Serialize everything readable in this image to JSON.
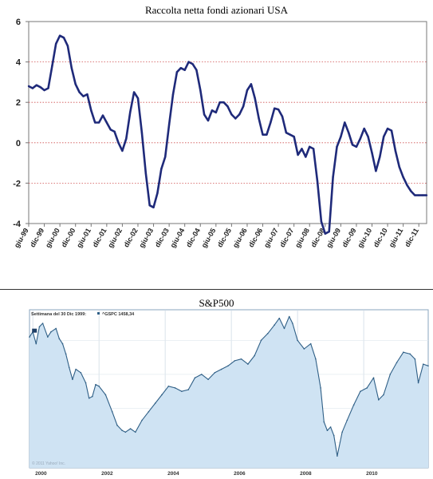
{
  "chart_data": [
    {
      "type": "line",
      "title": "Raccolta netta fondi azionari USA",
      "ylim": [
        -4,
        6
      ],
      "yticks": [
        -4,
        -2,
        0,
        2,
        4,
        6
      ],
      "xticks": [
        "giu-99",
        "dic-99",
        "giu-00",
        "dic-00",
        "giu-01",
        "dic-01",
        "giu-02",
        "dic-02",
        "giu-03",
        "dic-03",
        "giu-04",
        "dic-04",
        "giu-05",
        "dic-05",
        "giu-06",
        "dic-06",
        "giu-07",
        "dic-07",
        "giu-08",
        "dic-08",
        "giu-09",
        "dic-09",
        "giu-10",
        "dic-10",
        "giu-11",
        "dic-11"
      ],
      "grid": "horizontal-dotted-red",
      "line_color": "#1f2a7a",
      "series": [
        {
          "x": [
            0,
            0.5,
            1,
            1.5,
            2,
            2.5,
            3,
            3.5,
            4,
            4.5,
            5,
            5.5,
            6,
            6.5,
            7,
            7.5,
            8,
            8.5,
            9,
            9.5,
            10,
            10.5,
            11,
            11.5,
            12,
            12.5,
            13,
            13.5,
            14,
            14.5,
            15,
            15.5,
            16,
            16.5,
            17,
            17.5,
            18,
            18.5,
            19,
            19.5,
            20,
            20.5,
            21,
            21.5,
            22,
            22.5,
            23,
            23.5,
            24,
            24.5,
            25,
            25.5,
            26,
            26.5,
            27,
            27.5,
            28,
            28.5,
            29,
            29.5,
            30,
            30.5,
            31,
            31.5,
            32,
            32.5,
            33,
            33.5,
            34,
            34.5,
            35,
            35.5,
            36,
            36.5,
            37,
            37.5,
            38,
            38.5,
            39,
            39.5,
            40,
            40.5,
            41,
            41.5,
            42,
            42.5,
            43,
            43.5,
            44,
            44.5,
            45,
            45.5,
            46,
            46.5,
            47,
            47.5,
            48,
            48.5,
            49,
            49.5,
            50,
            50.5,
            51
          ],
          "y": [
            2.8,
            2.7,
            2.85,
            2.75,
            2.6,
            2.7,
            3.8,
            4.9,
            5.3,
            5.2,
            4.8,
            3.7,
            2.9,
            2.5,
            2.3,
            2.4,
            1.6,
            1.0,
            1.0,
            1.35,
            1.0,
            0.65,
            0.55,
            0.0,
            -0.4,
            0.2,
            1.5,
            2.5,
            2.2,
            0.5,
            -1.5,
            -3.1,
            -3.2,
            -2.5,
            -1.3,
            -0.7,
            0.9,
            2.4,
            3.5,
            3.7,
            3.6,
            4.0,
            3.9,
            3.6,
            2.6,
            1.4,
            1.1,
            1.6,
            1.5,
            2.0,
            2.0,
            1.8,
            1.4,
            1.2,
            1.4,
            1.8,
            2.6,
            2.9,
            2.2,
            1.2,
            0.4,
            0.4,
            1.0,
            1.7,
            1.65,
            1.3,
            0.5,
            0.4,
            0.3,
            -0.6,
            -0.3,
            -0.7,
            -0.2,
            -0.3,
            -1.9,
            -3.9,
            -4.5,
            -4.4,
            -1.7,
            -0.2,
            0.3,
            1.0,
            0.5,
            -0.1,
            -0.2,
            0.2,
            0.7,
            0.3,
            -0.5,
            -1.4,
            -0.7,
            0.3,
            0.7,
            0.6,
            -0.4,
            -1.2,
            -1.7,
            -2.1,
            -2.4,
            -2.6,
            -2.6,
            -2.6,
            -2.6
          ]
        }
      ]
    },
    {
      "type": "area",
      "title": "S&P500",
      "header_text": "Settimana del 30 Dic 1999:",
      "legend_label": "^GSPC 1458,34",
      "watermark": "© 2011 Yahoo! Inc.",
      "xticks": [
        "2000",
        "2002",
        "2004",
        "2006",
        "2008",
        "2010"
      ],
      "fill_color": "#cfe3f3",
      "line_color": "#2f5f86",
      "series": [
        {
          "x": [
            1999.9,
            2000.0,
            2000.1,
            2000.2,
            2000.3,
            2000.45,
            2000.55,
            2000.7,
            2000.8,
            2000.9,
            2001.0,
            2001.1,
            2001.2,
            2001.3,
            2001.45,
            2001.6,
            2001.7,
            2001.8,
            2001.9,
            2002.0,
            2002.2,
            2002.4,
            2002.55,
            2002.7,
            2002.8,
            2002.95,
            2003.1,
            2003.3,
            2003.5,
            2003.7,
            2003.9,
            2004.1,
            2004.3,
            2004.5,
            2004.7,
            2004.9,
            2005.1,
            2005.3,
            2005.5,
            2005.7,
            2005.9,
            2006.1,
            2006.3,
            2006.5,
            2006.7,
            2006.9,
            2007.1,
            2007.3,
            2007.45,
            2007.6,
            2007.75,
            2007.85,
            2008.0,
            2008.2,
            2008.4,
            2008.55,
            2008.7,
            2008.8,
            2008.9,
            2009.0,
            2009.1,
            2009.2,
            2009.35,
            2009.5,
            2009.7,
            2009.9,
            2010.1,
            2010.3,
            2010.45,
            2010.6,
            2010.8,
            2011.0,
            2011.2,
            2011.4,
            2011.55,
            2011.65,
            2011.8,
            2011.95
          ],
          "y": [
            1420,
            1450,
            1380,
            1480,
            1500,
            1420,
            1450,
            1470,
            1410,
            1380,
            1320,
            1240,
            1170,
            1230,
            1210,
            1150,
            1060,
            1070,
            1140,
            1130,
            1080,
            980,
            900,
            870,
            860,
            880,
            860,
            930,
            980,
            1030,
            1080,
            1130,
            1120,
            1100,
            1110,
            1180,
            1200,
            1170,
            1210,
            1230,
            1250,
            1280,
            1290,
            1260,
            1310,
            1400,
            1440,
            1490,
            1530,
            1470,
            1540,
            1500,
            1400,
            1350,
            1380,
            1290,
            1120,
            920,
            870,
            890,
            840,
            720,
            860,
            930,
            1020,
            1100,
            1120,
            1180,
            1050,
            1080,
            1200,
            1270,
            1330,
            1320,
            1290,
            1150,
            1260,
            1250
          ]
        }
      ]
    }
  ]
}
